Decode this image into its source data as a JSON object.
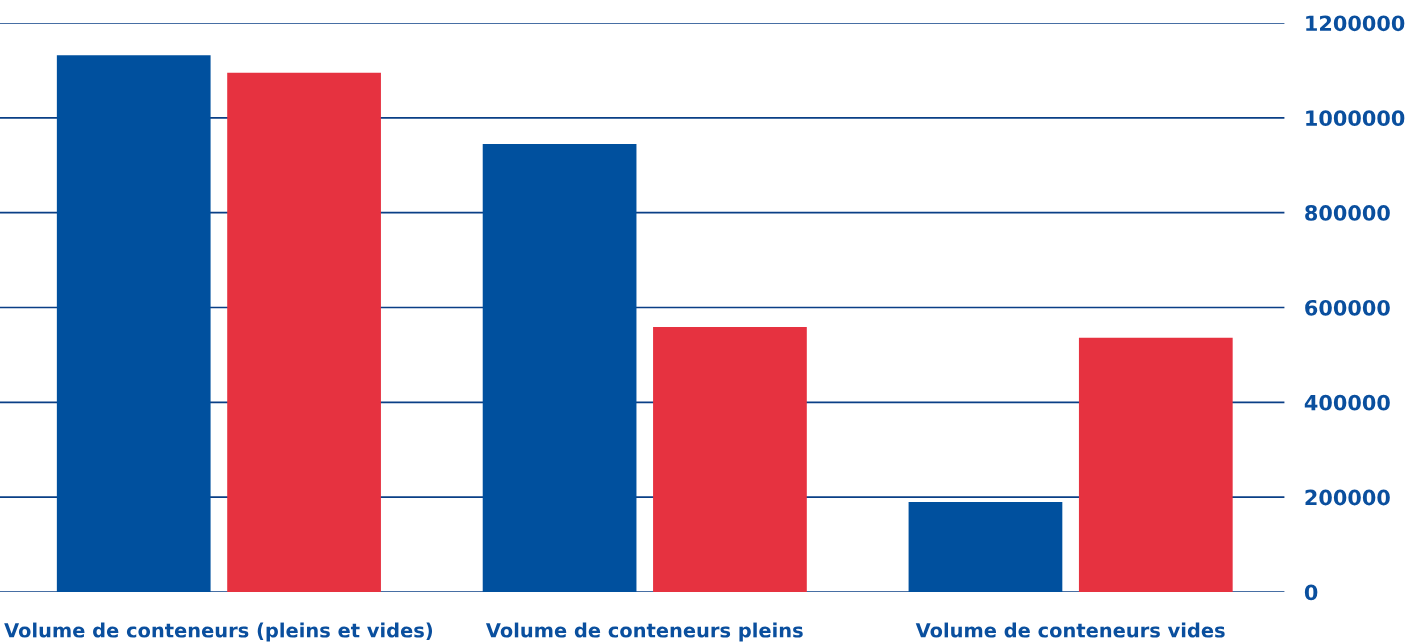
{
  "chart_data": {
    "type": "bar",
    "categories": [
      "Volume de conteneurs (pleins et vides)",
      "Volume de conteneurs pleins",
      "Volume de conteneurs vides"
    ],
    "series": [
      {
        "color": "#00509e",
        "values": [
          1132000,
          945000,
          190000
        ]
      },
      {
        "color": "#e63240",
        "values": [
          1095000,
          559000,
          536000
        ]
      }
    ],
    "ylim": [
      0,
      1200000
    ],
    "yticks": [
      0,
      200000,
      400000,
      600000,
      800000,
      1000000,
      1200000
    ],
    "grid": "y"
  }
}
